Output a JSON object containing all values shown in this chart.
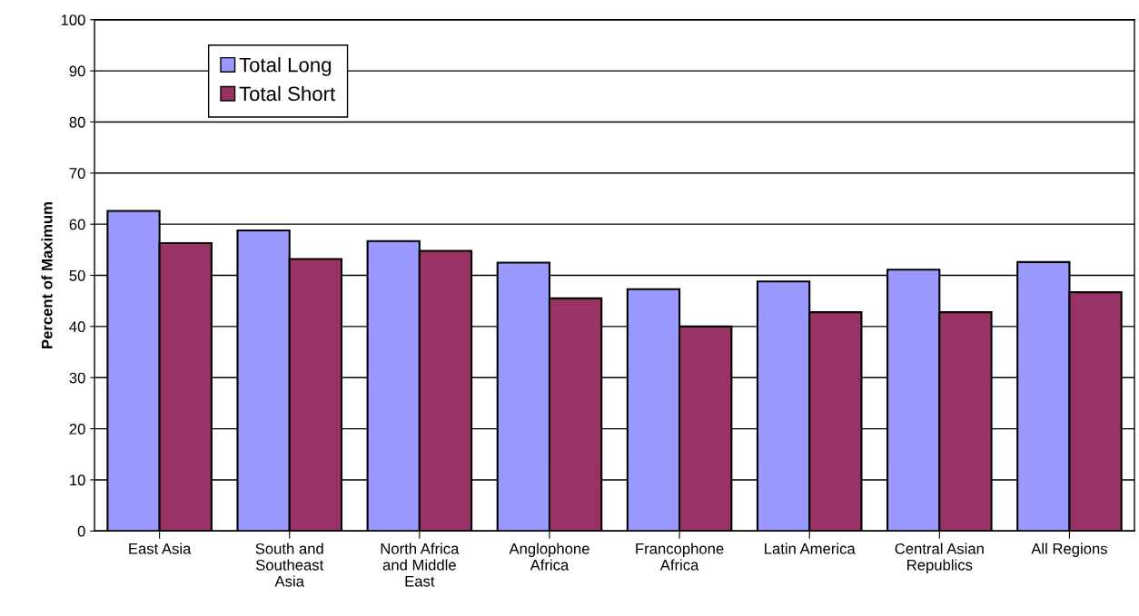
{
  "chart_data": {
    "type": "bar",
    "ylabel": "Percent of Maximum",
    "categories": [
      "East Asia",
      "South and\nSoutheast\nAsia",
      "North Africa\nand Middle\nEast",
      "Anglophone\nAfrica",
      "Francophone\nAfrica",
      "Latin America",
      "Central Asian\nRepublics",
      "All Regions"
    ],
    "series": [
      {
        "name": "Total Long",
        "color": "#9999ff",
        "values": [
          62.6,
          58.8,
          56.7,
          52.5,
          47.3,
          48.8,
          51.1,
          52.6
        ]
      },
      {
        "name": "Total Short",
        "color": "#993366",
        "values": [
          56.3,
          53.2,
          54.8,
          45.5,
          40.0,
          42.8,
          42.8,
          46.7
        ]
      }
    ],
    "ylim": [
      0,
      100
    ],
    "yticks": [
      0,
      10,
      20,
      30,
      40,
      50,
      60,
      70,
      80,
      90,
      100
    ],
    "grid": "y",
    "legend": "top left"
  }
}
